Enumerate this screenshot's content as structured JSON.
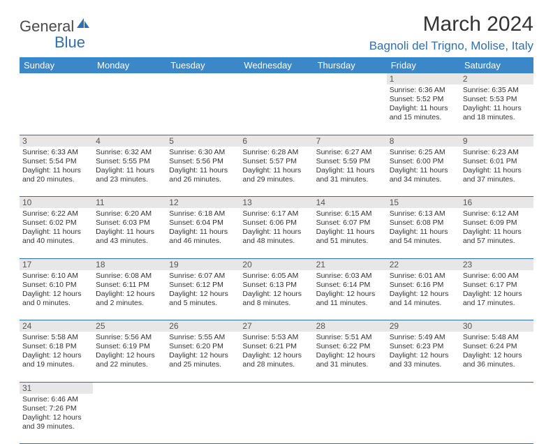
{
  "brand": {
    "part1": "General",
    "part2": "Blue"
  },
  "title": "March 2024",
  "location": "Bagnoli del Trigno, Molise, Italy",
  "colors": {
    "header_bg": "#3b87c8",
    "header_text": "#ffffff",
    "daynum_bg": "#e7e7e7",
    "daynum_text": "#555555",
    "border": "#2f6fb0",
    "body_text": "#333333",
    "brand_gray": "#4a4a4a",
    "brand_blue": "#2f6fb0"
  },
  "weekdays": [
    "Sunday",
    "Monday",
    "Tuesday",
    "Wednesday",
    "Thursday",
    "Friday",
    "Saturday"
  ],
  "weeks": [
    [
      null,
      null,
      null,
      null,
      null,
      {
        "day": "1",
        "sunrise": "6:36 AM",
        "sunset": "5:52 PM",
        "daylight": "11 hours and 15 minutes."
      },
      {
        "day": "2",
        "sunrise": "6:35 AM",
        "sunset": "5:53 PM",
        "daylight": "11 hours and 18 minutes."
      }
    ],
    [
      {
        "day": "3",
        "sunrise": "6:33 AM",
        "sunset": "5:54 PM",
        "daylight": "11 hours and 20 minutes."
      },
      {
        "day": "4",
        "sunrise": "6:32 AM",
        "sunset": "5:55 PM",
        "daylight": "11 hours and 23 minutes."
      },
      {
        "day": "5",
        "sunrise": "6:30 AM",
        "sunset": "5:56 PM",
        "daylight": "11 hours and 26 minutes."
      },
      {
        "day": "6",
        "sunrise": "6:28 AM",
        "sunset": "5:57 PM",
        "daylight": "11 hours and 29 minutes."
      },
      {
        "day": "7",
        "sunrise": "6:27 AM",
        "sunset": "5:59 PM",
        "daylight": "11 hours and 31 minutes."
      },
      {
        "day": "8",
        "sunrise": "6:25 AM",
        "sunset": "6:00 PM",
        "daylight": "11 hours and 34 minutes."
      },
      {
        "day": "9",
        "sunrise": "6:23 AM",
        "sunset": "6:01 PM",
        "daylight": "11 hours and 37 minutes."
      }
    ],
    [
      {
        "day": "10",
        "sunrise": "6:22 AM",
        "sunset": "6:02 PM",
        "daylight": "11 hours and 40 minutes."
      },
      {
        "day": "11",
        "sunrise": "6:20 AM",
        "sunset": "6:03 PM",
        "daylight": "11 hours and 43 minutes."
      },
      {
        "day": "12",
        "sunrise": "6:18 AM",
        "sunset": "6:04 PM",
        "daylight": "11 hours and 46 minutes."
      },
      {
        "day": "13",
        "sunrise": "6:17 AM",
        "sunset": "6:06 PM",
        "daylight": "11 hours and 48 minutes."
      },
      {
        "day": "14",
        "sunrise": "6:15 AM",
        "sunset": "6:07 PM",
        "daylight": "11 hours and 51 minutes."
      },
      {
        "day": "15",
        "sunrise": "6:13 AM",
        "sunset": "6:08 PM",
        "daylight": "11 hours and 54 minutes."
      },
      {
        "day": "16",
        "sunrise": "6:12 AM",
        "sunset": "6:09 PM",
        "daylight": "11 hours and 57 minutes."
      }
    ],
    [
      {
        "day": "17",
        "sunrise": "6:10 AM",
        "sunset": "6:10 PM",
        "daylight": "12 hours and 0 minutes."
      },
      {
        "day": "18",
        "sunrise": "6:08 AM",
        "sunset": "6:11 PM",
        "daylight": "12 hours and 2 minutes."
      },
      {
        "day": "19",
        "sunrise": "6:07 AM",
        "sunset": "6:12 PM",
        "daylight": "12 hours and 5 minutes."
      },
      {
        "day": "20",
        "sunrise": "6:05 AM",
        "sunset": "6:13 PM",
        "daylight": "12 hours and 8 minutes."
      },
      {
        "day": "21",
        "sunrise": "6:03 AM",
        "sunset": "6:14 PM",
        "daylight": "12 hours and 11 minutes."
      },
      {
        "day": "22",
        "sunrise": "6:01 AM",
        "sunset": "6:16 PM",
        "daylight": "12 hours and 14 minutes."
      },
      {
        "day": "23",
        "sunrise": "6:00 AM",
        "sunset": "6:17 PM",
        "daylight": "12 hours and 17 minutes."
      }
    ],
    [
      {
        "day": "24",
        "sunrise": "5:58 AM",
        "sunset": "6:18 PM",
        "daylight": "12 hours and 19 minutes."
      },
      {
        "day": "25",
        "sunrise": "5:56 AM",
        "sunset": "6:19 PM",
        "daylight": "12 hours and 22 minutes."
      },
      {
        "day": "26",
        "sunrise": "5:55 AM",
        "sunset": "6:20 PM",
        "daylight": "12 hours and 25 minutes."
      },
      {
        "day": "27",
        "sunrise": "5:53 AM",
        "sunset": "6:21 PM",
        "daylight": "12 hours and 28 minutes."
      },
      {
        "day": "28",
        "sunrise": "5:51 AM",
        "sunset": "6:22 PM",
        "daylight": "12 hours and 31 minutes."
      },
      {
        "day": "29",
        "sunrise": "5:49 AM",
        "sunset": "6:23 PM",
        "daylight": "12 hours and 33 minutes."
      },
      {
        "day": "30",
        "sunrise": "5:48 AM",
        "sunset": "6:24 PM",
        "daylight": "12 hours and 36 minutes."
      }
    ],
    [
      {
        "day": "31",
        "sunrise": "6:46 AM",
        "sunset": "7:26 PM",
        "daylight": "12 hours and 39 minutes."
      },
      null,
      null,
      null,
      null,
      null,
      null
    ]
  ],
  "labels": {
    "sunrise": "Sunrise: ",
    "sunset": "Sunset: ",
    "daylight": "Daylight: "
  }
}
